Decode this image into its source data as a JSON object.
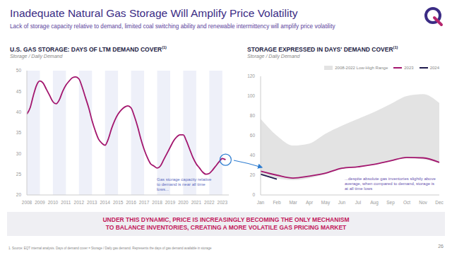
{
  "title": "Inadequate Natural Gas Storage Will Amplify Price Volatility",
  "subtitle": "Lack of storage capacity relative to demand, limited coal switching ability and renewable intermittency will amplify price volatility",
  "chart_data": [
    {
      "type": "line",
      "title": "U.S. GAS STORAGE: DAYS OF LTM DEMAND COVER",
      "title_note": "(1)",
      "subtitle": "Storage / Daily Demand",
      "x": [
        2008,
        2008.25,
        2008.5,
        2008.75,
        2009,
        2009.25,
        2009.5,
        2009.75,
        2010,
        2010.25,
        2010.5,
        2010.75,
        2011,
        2011.25,
        2011.5,
        2011.75,
        2012,
        2012.25,
        2012.5,
        2012.75,
        2013,
        2013.25,
        2013.5,
        2013.75,
        2014,
        2014.25,
        2014.5,
        2014.75,
        2015,
        2015.25,
        2015.5,
        2015.75,
        2016,
        2016.25,
        2016.5,
        2016.75,
        2017,
        2017.25,
        2017.5,
        2017.75,
        2018,
        2018.25,
        2018.5,
        2018.75,
        2019,
        2019.25,
        2019.5,
        2019.75,
        2020,
        2020.25,
        2020.5,
        2020.75,
        2021,
        2021.25,
        2021.5,
        2021.75,
        2022,
        2022.25,
        2022.5,
        2022.75,
        2023,
        2023.25
      ],
      "series": [
        {
          "name": "Days of LTM demand cover",
          "color": "#a3166e",
          "values": [
            39.5,
            41,
            44,
            46.5,
            47.5,
            47,
            45.5,
            44,
            42.5,
            42,
            43,
            45,
            46.5,
            47.5,
            48.3,
            48.5,
            48,
            46,
            43.5,
            41,
            38,
            35.5,
            33.5,
            32.5,
            32,
            33.5,
            36,
            38,
            39.5,
            40.5,
            41.2,
            41.5,
            41,
            39,
            36.5,
            33.5,
            31,
            29,
            27.5,
            27,
            26.5,
            27,
            28.5,
            30,
            31.5,
            33,
            34,
            34.5,
            34.5,
            33,
            31,
            29,
            27.5,
            26.5,
            25.5,
            25,
            25.2,
            26,
            27,
            28,
            28.8,
            28.5
          ]
        }
      ],
      "xlim": [
        2008,
        2023.5
      ],
      "xticks": [
        2008,
        2009,
        2010,
        2011,
        2012,
        2013,
        2014,
        2015,
        2016,
        2017,
        2018,
        2019,
        2020,
        2021,
        2022,
        2023
      ],
      "ylim": [
        20,
        50
      ],
      "yticks": [
        20,
        25,
        30,
        35,
        40,
        45,
        50
      ],
      "grid": false,
      "annotation": "Gas storage capacity relative to demand is near all time lows..."
    },
    {
      "type": "line",
      "title": "STORAGE EXPRESSED IN DAYS' DEMAND COVER",
      "title_note": "(1)",
      "subtitle": "Storage / Daily Demand",
      "categories": [
        "Jan",
        "Feb",
        "Mar",
        "Apr",
        "May",
        "Jun",
        "Jul",
        "Aug",
        "Sep",
        "Oct",
        "Nov",
        "Dec"
      ],
      "series": [
        {
          "name": "2008-2022 Low-High Range",
          "type": "area",
          "color": "#e3e3e3",
          "low": [
            22,
            17,
            15,
            17,
            21,
            26,
            28,
            31,
            34,
            37,
            36,
            32
          ],
          "high": [
            77,
            60,
            50,
            52,
            62,
            70,
            77,
            84,
            92,
            100,
            102,
            93
          ]
        },
        {
          "name": "2023",
          "type": "line",
          "color": "#a3166e",
          "values": [
            24,
            20,
            17,
            19,
            22,
            27,
            28.5,
            31,
            34.5,
            38,
            37.5,
            33
          ]
        },
        {
          "name": "2024",
          "type": "line",
          "color": "#1f1a4d",
          "values": [
            21,
            16,
            null,
            null,
            null,
            null,
            null,
            null,
            null,
            null,
            null,
            null
          ]
        }
      ],
      "ylim": [
        0,
        120
      ],
      "yticks": [
        0,
        20,
        40,
        60,
        80,
        100,
        120
      ],
      "grid": false,
      "legend": "top right",
      "annotation": "...despite absolute gas inventories slightly above average, when compared to demand, storage is at all time lows"
    }
  ],
  "banner": [
    "UNDER THIS DYNAMIC, PRICE IS INCREASINGLY BECOMING THE ONLY MECHANISM",
    "TO BALANCE INVENTORIES, CREATING A MORE VOLATILE GAS PRICING MARKET"
  ],
  "footnote": "1. Source: EQT internal analysis. Days of demand cover = Storage / Daily gas demand. Represents the days of gas demand available in storage",
  "page": "26"
}
